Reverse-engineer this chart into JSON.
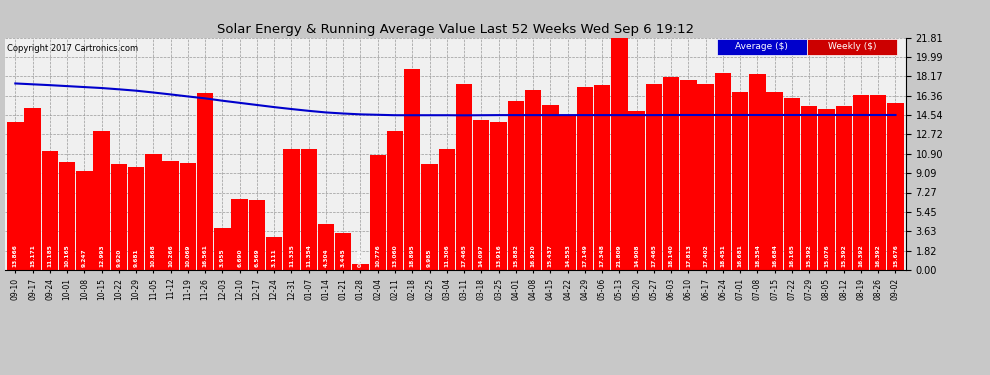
{
  "title": "Solar Energy & Running Average Value Last 52 Weeks Wed Sep 6 19:12",
  "copyright": "Copyright 2017 Cartronics.com",
  "bar_color": "#FF0000",
  "avg_line_color": "#0000CC",
  "background_color": "#C8C8C8",
  "plot_bg_color": "#F0F0F0",
  "grid_color": "#999999",
  "ylim": [
    0,
    21.81
  ],
  "yticks": [
    0.0,
    1.82,
    3.63,
    5.45,
    7.27,
    9.09,
    10.9,
    12.72,
    14.54,
    16.36,
    18.17,
    19.99,
    21.81
  ],
  "categories": [
    "09-10",
    "09-17",
    "09-24",
    "10-01",
    "10-08",
    "10-15",
    "10-22",
    "10-29",
    "11-05",
    "11-12",
    "11-19",
    "11-26",
    "12-03",
    "12-10",
    "12-17",
    "12-24",
    "12-31",
    "01-07",
    "01-14",
    "01-21",
    "01-28",
    "02-04",
    "02-11",
    "02-18",
    "02-25",
    "03-04",
    "03-11",
    "03-18",
    "03-25",
    "04-01",
    "04-08",
    "04-15",
    "04-22",
    "04-29",
    "05-06",
    "05-13",
    "05-20",
    "05-27",
    "06-03",
    "06-10",
    "06-17",
    "06-24",
    "07-01",
    "07-08",
    "07-15",
    "07-22",
    "07-29",
    "08-05",
    "08-12",
    "08-19",
    "08-26",
    "09-02"
  ],
  "values": [
    13.866,
    15.171,
    11.185,
    10.165,
    9.247,
    12.993,
    9.92,
    9.681,
    10.868,
    10.266,
    10.069,
    16.561,
    3.955,
    6.69,
    6.569,
    3.111,
    11.335,
    11.354,
    4.304,
    3.445,
    0.554,
    10.776,
    13.06,
    18.895,
    9.985,
    11.306,
    17.465,
    14.097,
    13.916,
    15.882,
    16.92,
    15.437,
    14.553,
    17.149,
    17.348,
    21.809,
    14.908,
    17.465,
    18.14,
    17.813,
    17.402,
    18.451,
    16.681,
    18.354,
    16.684,
    16.165,
    15.392,
    15.076,
    15.392,
    16.392,
    16.392,
    15.676
  ],
  "avg_values": [
    17.5,
    17.42,
    17.34,
    17.25,
    17.16,
    17.07,
    16.95,
    16.82,
    16.65,
    16.47,
    16.28,
    16.1,
    15.88,
    15.68,
    15.48,
    15.28,
    15.1,
    14.93,
    14.78,
    14.68,
    14.6,
    14.56,
    14.52,
    14.52,
    14.52,
    14.52,
    14.51,
    14.52,
    14.53,
    14.53,
    14.53,
    14.53,
    14.53,
    14.53,
    14.53,
    14.53,
    14.53,
    14.53,
    14.54,
    14.54,
    14.54,
    14.54,
    14.54,
    14.54,
    14.54,
    14.54,
    14.54,
    14.54,
    14.54,
    14.54,
    14.54,
    14.54
  ],
  "legend_avg_bg": "#0000CC",
  "legend_weekly_bg": "#CC0000",
  "legend_avg_label": "Average ($)",
  "legend_weekly_label": "Weekly ($)"
}
